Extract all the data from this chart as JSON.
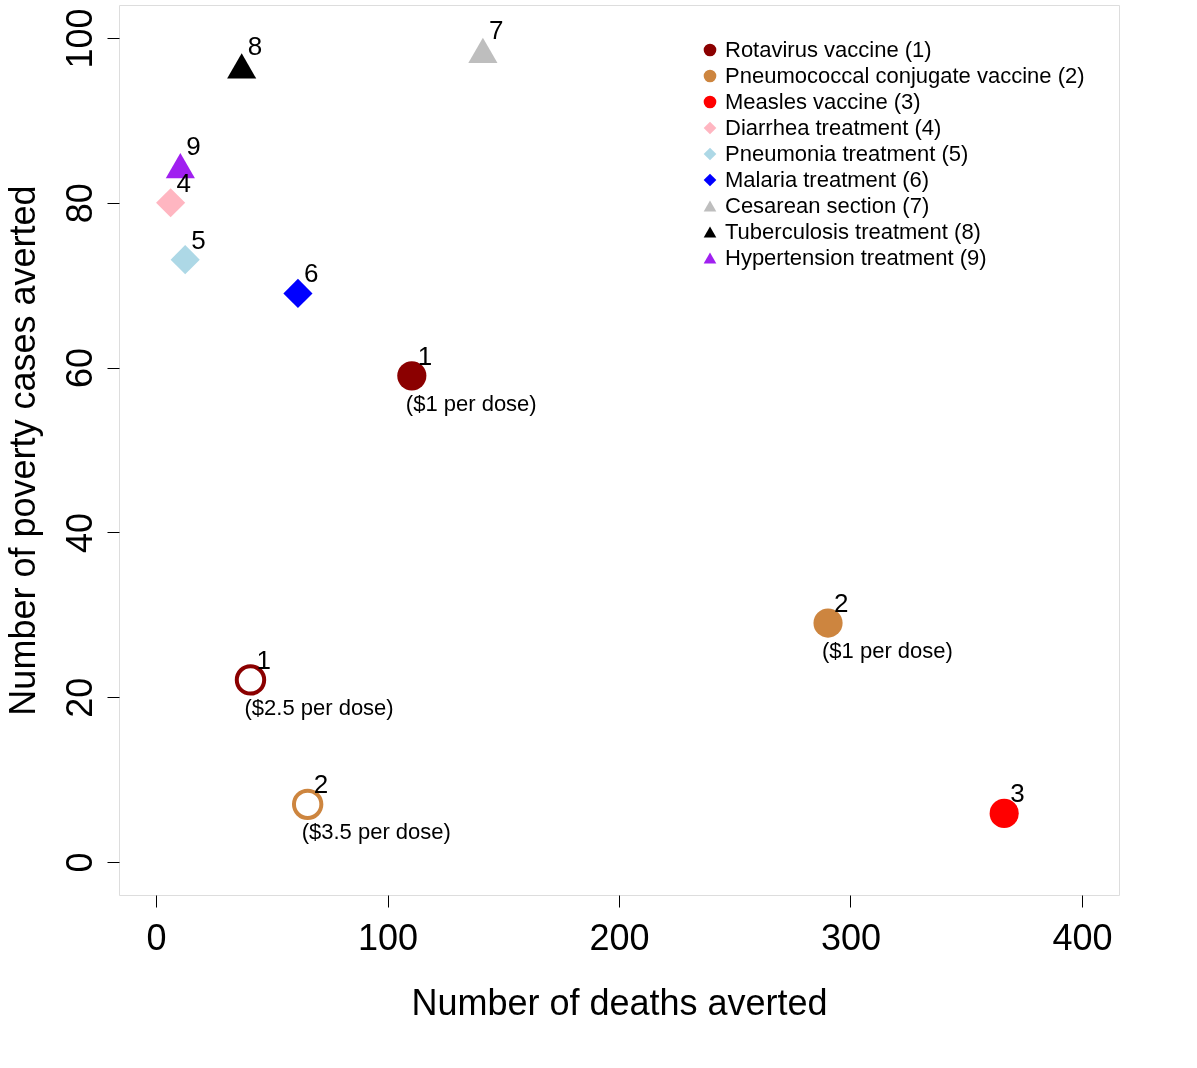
{
  "chart_data": {
    "type": "scatter",
    "xlabel": "Number of deaths averted",
    "ylabel": "Number of poverty cases averted",
    "xlim": [
      -16,
      416
    ],
    "ylim": [
      -4,
      104
    ],
    "xticks": [
      0,
      100,
      200,
      300,
      400
    ],
    "yticks": [
      0,
      20,
      40,
      60,
      80,
      100
    ],
    "grid": false,
    "legend": "top right",
    "series": [
      {
        "name": "Rotavirus vaccine (1)",
        "color": "#8b0000",
        "marker": "circle",
        "x": [
          110.5
        ],
        "values": [
          59.0
        ]
      },
      {
        "name": "Pneumococcal conjugate vaccine (2)",
        "color": "#cd853f",
        "marker": "circle",
        "x": [
          290.3
        ],
        "values": [
          29.0
        ]
      },
      {
        "name": "Measles vaccine (3)",
        "color": "#ff0000",
        "marker": "circle",
        "x": [
          366.4
        ],
        "values": [
          5.9
        ]
      },
      {
        "name": "Diarrhea treatment (4)",
        "color": "#ffb6c1",
        "marker": "diamond",
        "x": [
          6.3
        ],
        "values": [
          80.0
        ]
      },
      {
        "name": "Pneumonia treatment (5)",
        "color": "#add8e6",
        "marker": "diamond",
        "x": [
          12.6
        ],
        "values": [
          73.1
        ]
      },
      {
        "name": "Malaria treatment (6)",
        "color": "#0000ff",
        "marker": "diamond",
        "x": [
          61.3
        ],
        "values": [
          69.0
        ]
      },
      {
        "name": "Cesarean section (7)",
        "color": "#bebebe",
        "marker": "triangle",
        "x": [
          141.2
        ],
        "values": [
          98.5
        ]
      },
      {
        "name": "Tuberculosis treatment (8)",
        "color": "#000000",
        "marker": "triangle",
        "x": [
          37.0
        ],
        "values": [
          96.6
        ]
      },
      {
        "name": "Hypertension treatment (9)",
        "color": "#a020f0",
        "marker": "triangle",
        "x": [
          10.5
        ],
        "values": [
          84.5
        ]
      },
      {
        "color": "#8b0000",
        "marker": "circle",
        "x": [
          40.8
        ],
        "values": [
          22.1
        ]
      },
      {
        "color": "#cd853f",
        "marker": "circle",
        "x": [
          65.5
        ],
        "values": [
          7.0
        ]
      }
    ],
    "annotations": [
      {
        "text": "1",
        "x": 110.5,
        "y": 59.0
      },
      {
        "text": "2",
        "x": 290.3,
        "y": 29.0
      },
      {
        "text": "3",
        "x": 366.4,
        "y": 5.9
      },
      {
        "text": "4",
        "x": 6.3,
        "y": 80.0
      },
      {
        "text": "5",
        "x": 12.6,
        "y": 73.1
      },
      {
        "text": "6",
        "x": 61.3,
        "y": 69.0
      },
      {
        "text": "7",
        "x": 141.2,
        "y": 98.5
      },
      {
        "text": "8",
        "x": 37.0,
        "y": 96.6
      },
      {
        "text": "9",
        "x": 10.5,
        "y": 84.5
      },
      {
        "text": "1",
        "x": 40.8,
        "y": 22.1
      },
      {
        "text": "2",
        "x": 65.5,
        "y": 7.0
      },
      {
        "text": "($1 per dose)",
        "x": 110.5,
        "y": 59.0
      },
      {
        "text": "($1 per dose)",
        "x": 290.3,
        "y": 29.0
      },
      {
        "text": "($2.5 per dose)",
        "x": 40.8,
        "y": 22.1
      },
      {
        "text": "($3.5 per dose)",
        "x": 65.5,
        "y": 7.0
      }
    ]
  }
}
